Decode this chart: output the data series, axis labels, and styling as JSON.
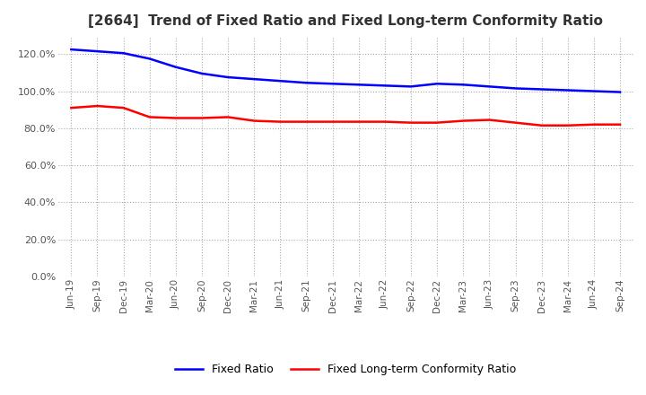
{
  "title": "[2664]  Trend of Fixed Ratio and Fixed Long-term Conformity Ratio",
  "x_labels": [
    "Jun-19",
    "Sep-19",
    "Dec-19",
    "Mar-20",
    "Jun-20",
    "Sep-20",
    "Dec-20",
    "Mar-21",
    "Jun-21",
    "Sep-21",
    "Dec-21",
    "Mar-22",
    "Jun-22",
    "Sep-22",
    "Dec-22",
    "Mar-23",
    "Jun-23",
    "Sep-23",
    "Dec-23",
    "Mar-24",
    "Jun-24",
    "Sep-24"
  ],
  "fixed_ratio": [
    122.5,
    121.5,
    120.5,
    117.5,
    113.0,
    109.5,
    107.5,
    106.5,
    105.5,
    104.5,
    104.0,
    103.5,
    103.0,
    102.5,
    104.0,
    103.5,
    102.5,
    101.5,
    101.0,
    100.5,
    100.0,
    99.5
  ],
  "fixed_lt_ratio": [
    91.0,
    92.0,
    91.0,
    86.0,
    85.5,
    85.5,
    86.0,
    84.0,
    83.5,
    83.5,
    83.5,
    83.5,
    83.5,
    83.0,
    83.0,
    84.0,
    84.5,
    83.0,
    81.5,
    81.5,
    82.0,
    82.0
  ],
  "fixed_ratio_color": "#0000ff",
  "fixed_lt_ratio_color": "#ff0000",
  "ylim": [
    0,
    130
  ],
  "yticks": [
    0,
    20,
    40,
    60,
    80,
    100,
    120
  ],
  "background_color": "#ffffff",
  "grid_color": "#aaaaaa"
}
